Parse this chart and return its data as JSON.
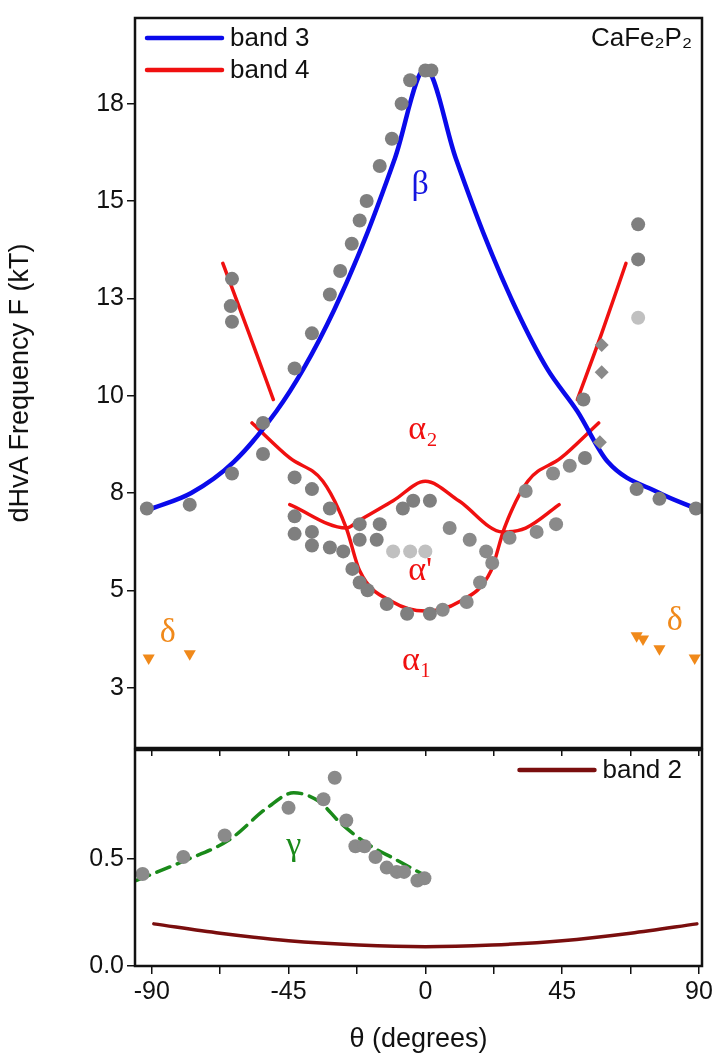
{
  "chart_data": [
    {
      "type": "scatter",
      "ylabel": "dHvA Frequency F (kT)",
      "xlim": [
        -95.5,
        91
      ],
      "ylim": [
        0.95,
        19.7
      ],
      "xticks": [
        -90,
        {
          "value": -67.5,
          "label": null
        },
        -45,
        {
          "value": -22.5,
          "label": null
        },
        0,
        {
          "value": 22.5,
          "label": null
        },
        45,
        {
          "value": 67.5,
          "label": null
        },
        90
      ],
      "yticks": [
        {
          "value": 2.5,
          "label": "3"
        },
        5,
        {
          "value": 7.5,
          "label": "8"
        },
        10,
        {
          "value": 12.5,
          "label": "13"
        },
        15,
        {
          "value": 17.5,
          "label": "18"
        }
      ],
      "tick_labels": "y",
      "grid": false,
      "legend": "top left",
      "annotations": [
        "CaFe₂P₂",
        "β",
        "α₂",
        "α'",
        "α₁",
        "δ",
        "δ"
      ],
      "series": [
        {
          "type": "scatter",
          "color": "#7f7f7f",
          "marker": "circle",
          "x": [
            -63.6,
            -64,
            -63.6,
            -37.3,
            -43,
            -31.4,
            -28,
            -24.2,
            -21.6,
            -19.3,
            -15,
            -11,
            -7.8,
            -5,
            0,
            2,
            70,
            70,
            -91.6,
            -77.5,
            -63.6,
            -53.4,
            -53.4,
            -43,
            -37.3,
            -31.4,
            -43,
            -43,
            -37.3,
            -37.3,
            -31.4,
            -27,
            -24,
            -21.6,
            -21.6,
            -16,
            -21.6,
            -15,
            -7.4,
            -4,
            1.5,
            -19,
            -12.7,
            -6,
            1.5,
            52,
            52.5,
            69.5,
            77,
            89
          ],
          "values": [
            13.0,
            12.3,
            11.9,
            11.6,
            10.7,
            12.6,
            13.2,
            13.9,
            14.5,
            15.0,
            15.9,
            16.6,
            17.5,
            18.1,
            18.35,
            18.35,
            14.4,
            13.5,
            7.1,
            7.2,
            8.0,
            9.3,
            8.5,
            7.9,
            7.6,
            7.1,
            6.9,
            6.45,
            6.5,
            6.15,
            6.1,
            6.0,
            5.55,
            5.2,
            6.3,
            6.3,
            6.7,
            6.7,
            7.1,
            7.3,
            7.3,
            5.0,
            4.65,
            4.4,
            4.4,
            9.9,
            8.4,
            7.6,
            7.35,
            7.1
          ]
        },
        {
          "type": "scatter",
          "color": "#c0c0c0",
          "marker": "circle",
          "x": [
            70,
            -10.6,
            -5,
            0
          ],
          "values": [
            12.0,
            6.0,
            6.0,
            6.0
          ]
        },
        {
          "type": "scatter",
          "color": "#8a8a8a",
          "marker": "circle",
          "x": [
            8,
            14.6,
            20,
            22,
            18,
            13.6,
            5.7,
            27.7,
            36.6,
            43,
            33,
            42,
            47.5
          ],
          "values": [
            6.6,
            6.3,
            6.0,
            5.7,
            5.2,
            4.7,
            4.5,
            6.35,
            6.5,
            6.7,
            7.55,
            8.0,
            8.2
          ]
        },
        {
          "type": "scatter",
          "color": "#8a8a8a",
          "marker": "diamond",
          "x": [
            58,
            58,
            57.4
          ],
          "values": [
            11.3,
            10.6,
            8.8
          ]
        },
        {
          "type": "scatter",
          "color": "#f0891a",
          "marker": "triangle",
          "x": [
            -91,
            -77.5,
            69.5,
            71.6,
            77,
            88.6
          ],
          "values": [
            3.26,
            3.37,
            3.83,
            3.75,
            3.5,
            3.26
          ]
        },
        {
          "type": "line",
          "name": "band 3",
          "color": "#0a0aeb",
          "marker": "none",
          "x": [
            -90,
            -77,
            -63,
            -49,
            -40,
            -30,
            -20,
            -10,
            0,
            10,
            20,
            30,
            40,
            50,
            60,
            77,
            89
          ],
          "values": [
            7.1,
            7.5,
            8.3,
            9.6,
            10.7,
            12.2,
            14.0,
            16.1,
            18.4,
            16.1,
            14.0,
            12.2,
            10.7,
            9.6,
            8.3,
            7.5,
            7.1
          ]
        },
        {
          "type": "line",
          "name": "band 4",
          "color": "#f01010",
          "marker": "none",
          "x": [
            -66.6,
            -58,
            -50
          ],
          "values": [
            13.4,
            11.6,
            9.9
          ]
        },
        {
          "type": "line",
          "color": "#f01010",
          "marker": "none",
          "x": [
            -57,
            -44.6,
            -33.7,
            -26,
            -21.6,
            -10.7,
            0,
            11,
            21.6,
            26,
            33.7,
            44.6,
            57
          ],
          "values": [
            9.3,
            8.4,
            7.8,
            6.6,
            5.5,
            4.7,
            4.47,
            4.7,
            5.5,
            6.6,
            7.8,
            8.4,
            9.3
          ]
        },
        {
          "type": "line",
          "color": "#f01010",
          "marker": "none",
          "x": [
            -44.6,
            -26,
            -21.6,
            -10.6,
            0,
            11,
            25.5,
            33,
            44
          ],
          "values": [
            7.2,
            6.6,
            6.8,
            7.3,
            7.8,
            7.3,
            6.5,
            6.6,
            7.2
          ]
        },
        {
          "type": "line",
          "color": "#f01010",
          "marker": "none",
          "x": [
            50,
            58,
            66
          ],
          "values": [
            9.9,
            11.6,
            13.4
          ]
        }
      ]
    },
    {
      "type": "scatter",
      "xlabel": "θ (degrees)",
      "xlim": [
        -95.5,
        91
      ],
      "ylim": [
        0,
        1.01
      ],
      "xticks": [
        -90,
        {
          "value": -67.5,
          "label": null
        },
        -45,
        {
          "value": -22.5,
          "label": null
        },
        0,
        {
          "value": 22.5,
          "label": null
        },
        45,
        {
          "value": 67.5,
          "label": null
        },
        90
      ],
      "yticks": [
        {
          "value": 0,
          "label": "0.0"
        },
        {
          "value": 0.5,
          "label": "0.5"
        }
      ],
      "grid": false,
      "legend": "top right",
      "annotations": [
        "γ"
      ],
      "series": [
        {
          "type": "scatter",
          "color": "#8a8a8a",
          "marker": "circle",
          "x": [
            -93,
            -79.6,
            -66,
            -45,
            -33.5,
            -29.8,
            -26,
            -23,
            -20,
            -16.4,
            -12.7,
            -9.4,
            -7,
            -2.6,
            -0.3
          ],
          "values": [
            0.43,
            0.51,
            0.61,
            0.74,
            0.78,
            0.88,
            0.68,
            0.56,
            0.56,
            0.51,
            0.46,
            0.44,
            0.44,
            0.4,
            0.41
          ]
        },
        {
          "type": "line",
          "color": "#1a8a1a",
          "marker": "none",
          "line_style": "dashed",
          "x": [
            -95,
            -79.6,
            -64.5,
            -52,
            -43.3,
            -35,
            -28,
            -19,
            -10,
            -1
          ],
          "values": [
            0.4,
            0.49,
            0.59,
            0.74,
            0.81,
            0.77,
            0.67,
            0.57,
            0.5,
            0.43
          ]
        },
        {
          "type": "line",
          "name": "band 2",
          "color": "#7a0e0e",
          "marker": "none",
          "x": [
            -89.3,
            -67.5,
            -45,
            -22,
            0,
            22,
            45,
            67.5,
            89.3
          ],
          "values": [
            0.197,
            0.153,
            0.118,
            0.098,
            0.09,
            0.098,
            0.118,
            0.153,
            0.197
          ]
        }
      ]
    }
  ]
}
